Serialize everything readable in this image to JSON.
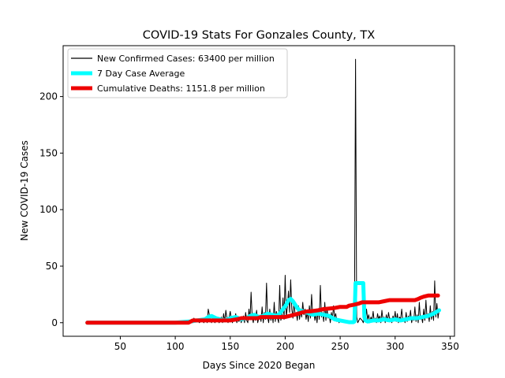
{
  "chart_data": {
    "type": "line",
    "title": "COVID-19 Stats For Gonzales County, TX",
    "xlabel": "Days Since 2020 Began",
    "ylabel": "New COVID-19 Cases",
    "xlim": [
      -2,
      354
    ],
    "ylim": [
      -12,
      245
    ],
    "xticks": [
      50,
      100,
      150,
      200,
      250,
      300,
      350
    ],
    "yticks": [
      0,
      50,
      100,
      150,
      200
    ],
    "grid": false,
    "legend_position": "top-left",
    "series": [
      {
        "name": "New Confirmed Cases: 63400 per million",
        "color": "#000000",
        "style": "thin",
        "x": [
          20,
          30,
          40,
          50,
          60,
          70,
          80,
          90,
          100,
          105,
          110,
          113,
          114,
          115,
          116,
          117,
          118,
          120,
          122,
          124,
          126,
          128,
          129,
          130,
          131,
          132,
          133,
          134,
          136,
          138,
          140,
          141,
          142,
          143,
          144,
          145,
          146,
          147,
          148,
          150,
          151,
          152,
          153,
          154,
          155,
          156,
          157,
          158,
          159,
          160,
          161,
          162,
          163,
          164,
          165,
          166,
          167,
          168,
          169,
          170,
          171,
          172,
          173,
          174,
          175,
          176,
          177,
          178,
          179,
          180,
          181,
          182,
          183,
          184,
          185,
          186,
          187,
          188,
          189,
          190,
          191,
          192,
          193,
          194,
          195,
          196,
          197,
          198,
          199,
          200,
          201,
          202,
          203,
          204,
          205,
          206,
          207,
          208,
          209,
          210,
          211,
          212,
          213,
          214,
          215,
          216,
          217,
          218,
          219,
          220,
          221,
          222,
          223,
          224,
          225,
          226,
          227,
          228,
          229,
          230,
          231,
          232,
          233,
          234,
          235,
          236,
          237,
          238,
          239,
          240,
          241,
          242,
          243,
          244,
          245,
          246,
          247,
          248,
          249,
          250,
          252,
          254,
          256,
          258,
          260,
          262,
          263,
          264,
          265,
          266,
          268,
          270,
          271,
          272,
          273,
          274,
          275,
          276,
          277,
          278,
          279,
          280,
          281,
          282,
          283,
          284,
          285,
          286,
          287,
          288,
          289,
          290,
          291,
          292,
          293,
          294,
          295,
          296,
          297,
          298,
          299,
          300,
          301,
          302,
          303,
          304,
          305,
          306,
          307,
          308,
          309,
          310,
          311,
          312,
          313,
          314,
          315,
          316,
          317,
          318,
          319,
          320,
          321,
          322,
          323,
          324,
          325,
          326,
          327,
          328,
          329,
          330,
          331,
          332,
          333,
          334,
          335,
          336,
          337,
          338,
          339,
          340
        ],
        "y": [
          0,
          0,
          0,
          0,
          0,
          0,
          0,
          0,
          0,
          0,
          0,
          0,
          0,
          3,
          0,
          4,
          1,
          2,
          0,
          3,
          0,
          4,
          0,
          12,
          7,
          2,
          0,
          5,
          0,
          3,
          0,
          2,
          5,
          0,
          8,
          1,
          11,
          4,
          0,
          10,
          3,
          0,
          6,
          2,
          8,
          0,
          3,
          1,
          5,
          0,
          4,
          6,
          0,
          9,
          2,
          0,
          12,
          3,
          27,
          5,
          0,
          8,
          2,
          11,
          0,
          4,
          6,
          1,
          14,
          0,
          9,
          3,
          35,
          5,
          0,
          12,
          2,
          8,
          0,
          18,
          1,
          10,
          4,
          0,
          33,
          2,
          6,
          22,
          3,
          42,
          5,
          14,
          28,
          9,
          38,
          12,
          4,
          20,
          6,
          9,
          2,
          15,
          3,
          11,
          5,
          18,
          7,
          12,
          3,
          9,
          1,
          15,
          4,
          25,
          6,
          10,
          2,
          8,
          0,
          12,
          3,
          33,
          5,
          9,
          1,
          18,
          2,
          13,
          4,
          7,
          0,
          9,
          3,
          15,
          5,
          8,
          1,
          3,
          0,
          2,
          1,
          0,
          1,
          0,
          0,
          2,
          0,
          233,
          5,
          0,
          4,
          2,
          0,
          8,
          1,
          12,
          3,
          7,
          0,
          5,
          2,
          10,
          1,
          4,
          0,
          8,
          3,
          6,
          0,
          11,
          2,
          5,
          0,
          7,
          1,
          9,
          3,
          4,
          0,
          6,
          2,
          10,
          1,
          8,
          0,
          5,
          3,
          12,
          2,
          4,
          0,
          9,
          1,
          6,
          3,
          11,
          0,
          5,
          2,
          14,
          1,
          7,
          0,
          18,
          3,
          5,
          0,
          12,
          2,
          20,
          4,
          8,
          1,
          15,
          3,
          10,
          2,
          37,
          5,
          17,
          4,
          11
        ]
      },
      {
        "name": "7 Day Case Average",
        "color": "#00ffff",
        "style": "thick",
        "x": [
          20,
          60,
          100,
          113,
          120,
          127,
          130,
          133,
          137,
          141,
          145,
          150,
          155,
          160,
          165,
          168,
          172,
          176,
          180,
          184,
          188,
          192,
          195,
          198,
          201,
          203,
          205,
          207,
          209,
          211,
          213,
          216,
          220,
          225,
          230,
          235,
          240,
          245,
          250,
          255,
          258,
          262,
          263,
          264,
          265,
          266,
          268,
          270,
          271,
          272,
          273,
          275,
          280,
          285,
          290,
          295,
          300,
          305,
          310,
          315,
          320,
          325,
          330,
          335,
          340
        ],
        "y": [
          0,
          0,
          0,
          1,
          2,
          3,
          5,
          6,
          4,
          3,
          2,
          4,
          5,
          3,
          4,
          6,
          7,
          5,
          6,
          8,
          7,
          6,
          8,
          12,
          16,
          20,
          21,
          19,
          16,
          13,
          11,
          10,
          9,
          7,
          8,
          7,
          6,
          3,
          2,
          1,
          0.5,
          0.5,
          1,
          35,
          35,
          35,
          35,
          35,
          35,
          5,
          2,
          1,
          2,
          2,
          3,
          2,
          3,
          2,
          3,
          4,
          4,
          5,
          6,
          8,
          11
        ]
      },
      {
        "name": "Cumulative Deaths: 1151.8 per million",
        "color": "#ee0000",
        "style": "thick",
        "x": [
          20,
          100,
          112,
          116,
          135,
          150,
          156,
          160,
          175,
          178,
          190,
          195,
          200,
          204,
          212,
          215,
          220,
          223,
          230,
          235,
          245,
          250,
          256,
          258,
          263,
          267,
          270,
          275,
          283,
          285,
          290,
          295,
          305,
          318,
          321,
          323,
          326,
          330,
          335,
          339
        ],
        "y": [
          0,
          0,
          0,
          2,
          2,
          2,
          3,
          4,
          4,
          5,
          5,
          5,
          5,
          6,
          8,
          9,
          10,
          10,
          11,
          12,
          13,
          14,
          14,
          15,
          16,
          17,
          18,
          18,
          18,
          18,
          19,
          20,
          20,
          20,
          21,
          22,
          23,
          24,
          24,
          24
        ]
      }
    ]
  }
}
